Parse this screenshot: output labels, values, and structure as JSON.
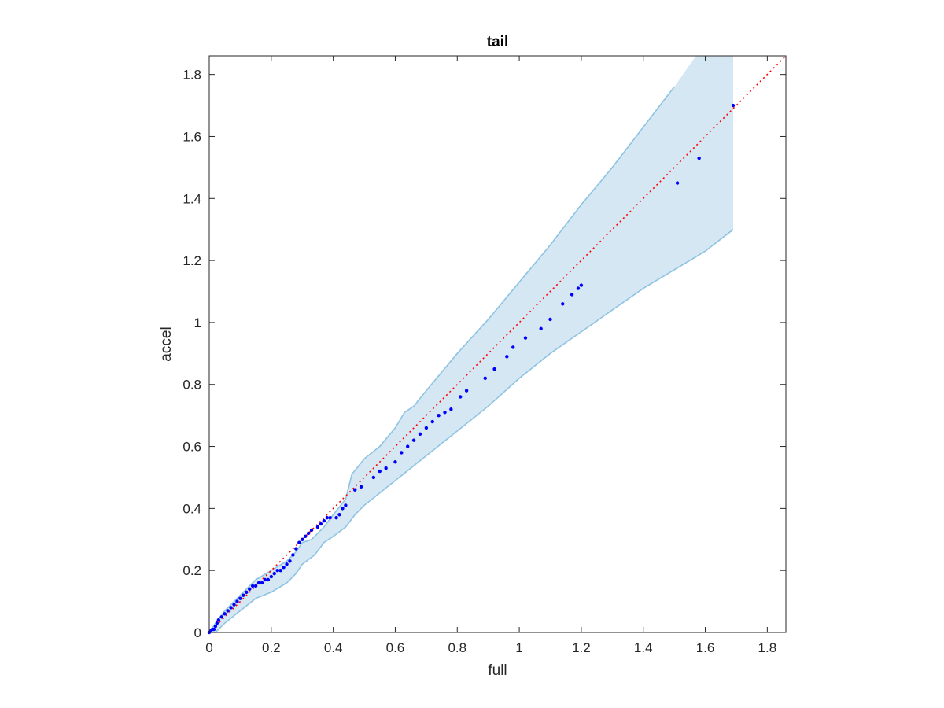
{
  "chart_data": {
    "type": "scatter",
    "title": "tail",
    "xlabel": "full",
    "ylabel": "accel",
    "xlim": [
      0,
      1.86
    ],
    "ylim": [
      0,
      1.86
    ],
    "x_ticks": [
      "0",
      "0.2",
      "0.4",
      "0.6",
      "0.8",
      "1",
      "1.2",
      "1.4",
      "1.6",
      "1.8"
    ],
    "y_ticks": [
      "0",
      "0.2",
      "0.4",
      "0.6",
      "0.8",
      "1",
      "1.2",
      "1.4",
      "1.6",
      "1.8"
    ],
    "grid": false,
    "colors": {
      "points": "#0000ff",
      "reference_line": "#ff0000",
      "band_fill": "#d6e7f4",
      "band_edge": "#8ec3e2",
      "axis": "#262626"
    },
    "reference_line": {
      "style": "dotted",
      "from": [
        0,
        0
      ],
      "to": [
        1.86,
        1.86
      ]
    },
    "band": {
      "upper": [
        [
          0,
          0
        ],
        [
          0.02,
          0.03
        ],
        [
          0.05,
          0.07
        ],
        [
          0.1,
          0.12
        ],
        [
          0.15,
          0.17
        ],
        [
          0.2,
          0.2
        ],
        [
          0.25,
          0.23
        ],
        [
          0.28,
          0.26
        ],
        [
          0.3,
          0.29
        ],
        [
          0.33,
          0.3
        ],
        [
          0.37,
          0.34
        ],
        [
          0.4,
          0.38
        ],
        [
          0.44,
          0.43
        ],
        [
          0.46,
          0.51
        ],
        [
          0.5,
          0.56
        ],
        [
          0.55,
          0.6
        ],
        [
          0.6,
          0.66
        ],
        [
          0.63,
          0.71
        ],
        [
          0.66,
          0.73
        ],
        [
          0.7,
          0.78
        ],
        [
          0.8,
          0.9
        ],
        [
          0.9,
          1.01
        ],
        [
          1.0,
          1.13
        ],
        [
          1.1,
          1.25
        ],
        [
          1.2,
          1.38
        ],
        [
          1.3,
          1.5
        ],
        [
          1.4,
          1.63
        ],
        [
          1.5,
          1.76
        ],
        [
          1.57,
          1.86
        ],
        [
          1.69,
          1.86
        ]
      ],
      "lower": [
        [
          0,
          0
        ],
        [
          0.02,
          0.0
        ],
        [
          0.05,
          0.03
        ],
        [
          0.1,
          0.07
        ],
        [
          0.15,
          0.11
        ],
        [
          0.2,
          0.13
        ],
        [
          0.25,
          0.16
        ],
        [
          0.28,
          0.19
        ],
        [
          0.3,
          0.22
        ],
        [
          0.34,
          0.25
        ],
        [
          0.37,
          0.29
        ],
        [
          0.4,
          0.31
        ],
        [
          0.44,
          0.34
        ],
        [
          0.47,
          0.38
        ],
        [
          0.5,
          0.41
        ],
        [
          0.55,
          0.45
        ],
        [
          0.6,
          0.49
        ],
        [
          0.65,
          0.53
        ],
        [
          0.7,
          0.57
        ],
        [
          0.8,
          0.65
        ],
        [
          0.9,
          0.73
        ],
        [
          1.0,
          0.82
        ],
        [
          1.1,
          0.9
        ],
        [
          1.2,
          0.97
        ],
        [
          1.3,
          1.04
        ],
        [
          1.4,
          1.11
        ],
        [
          1.5,
          1.17
        ],
        [
          1.6,
          1.23
        ],
        [
          1.69,
          1.3
        ]
      ]
    },
    "series": [
      {
        "x": [
          0.0,
          0.005,
          0.01,
          0.015,
          0.02,
          0.025,
          0.03,
          0.04,
          0.05,
          0.06,
          0.07,
          0.08,
          0.09,
          0.1,
          0.11,
          0.12,
          0.13,
          0.14,
          0.15,
          0.16,
          0.17,
          0.18,
          0.19,
          0.2,
          0.21,
          0.22,
          0.23,
          0.24,
          0.25,
          0.26,
          0.27,
          0.28,
          0.29,
          0.3,
          0.31,
          0.32,
          0.33,
          0.35,
          0.36,
          0.37,
          0.38,
          0.39,
          0.41,
          0.42,
          0.43,
          0.44,
          0.47,
          0.49,
          0.53,
          0.55,
          0.57,
          0.6,
          0.62,
          0.64,
          0.66,
          0.68,
          0.7,
          0.72,
          0.74,
          0.76,
          0.78,
          0.81,
          0.83,
          0.89,
          0.92,
          0.96,
          0.98,
          1.02,
          1.07,
          1.1,
          1.14,
          1.17,
          1.19,
          1.2,
          1.51,
          1.58,
          1.69
        ],
        "y": [
          0.0,
          0.005,
          0.01,
          0.01,
          0.02,
          0.03,
          0.04,
          0.05,
          0.06,
          0.07,
          0.08,
          0.09,
          0.1,
          0.11,
          0.12,
          0.13,
          0.14,
          0.15,
          0.15,
          0.16,
          0.16,
          0.17,
          0.17,
          0.18,
          0.19,
          0.2,
          0.2,
          0.21,
          0.22,
          0.23,
          0.25,
          0.27,
          0.29,
          0.3,
          0.31,
          0.32,
          0.33,
          0.34,
          0.35,
          0.36,
          0.37,
          0.37,
          0.37,
          0.38,
          0.4,
          0.41,
          0.46,
          0.47,
          0.5,
          0.52,
          0.53,
          0.55,
          0.58,
          0.6,
          0.62,
          0.64,
          0.66,
          0.68,
          0.7,
          0.71,
          0.72,
          0.76,
          0.78,
          0.82,
          0.85,
          0.89,
          0.92,
          0.95,
          0.98,
          1.01,
          1.06,
          1.09,
          1.11,
          1.12,
          1.45,
          1.53,
          1.7
        ]
      }
    ]
  }
}
